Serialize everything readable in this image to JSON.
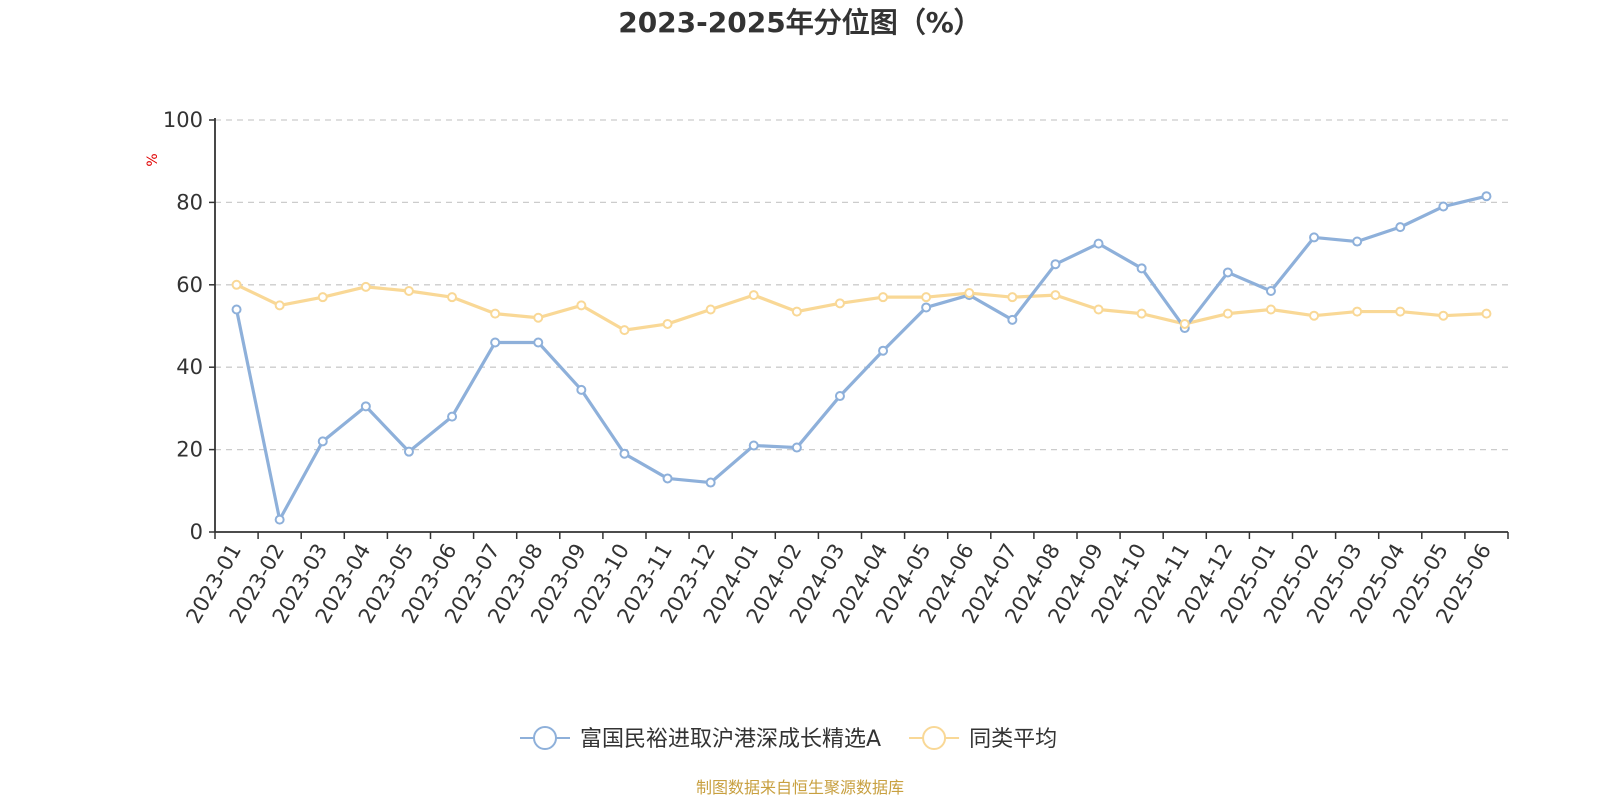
{
  "chart_data": {
    "type": "line",
    "title": "2023-2025年分位图（%）",
    "ylabel": "%",
    "ylim": [
      0,
      100
    ],
    "yticks": [
      "0",
      "20",
      "40",
      "60",
      "80",
      "100"
    ],
    "grid": true,
    "legend": "bottom-center",
    "categories": [
      "2023-01",
      "2023-02",
      "2023-03",
      "2023-04",
      "2023-05",
      "2023-06",
      "2023-07",
      "2023-08",
      "2023-09",
      "2023-10",
      "2023-11",
      "2023-12",
      "2024-01",
      "2024-02",
      "2024-03",
      "2024-04",
      "2024-05",
      "2024-06",
      "2024-07",
      "2024-08",
      "2024-09",
      "2024-10",
      "2024-11",
      "2024-12",
      "2025-01",
      "2025-02",
      "2025-03",
      "2025-04",
      "2025-05",
      "2025-06"
    ],
    "series": [
      {
        "name": "富国民裕进取沪港深成长精选A",
        "color": "#8eb0da",
        "values": [
          54,
          3,
          22,
          30.5,
          19.5,
          28,
          46,
          46,
          34.5,
          19,
          13,
          12,
          21,
          20.5,
          33,
          44,
          54.5,
          57.5,
          51.5,
          65,
          70,
          64,
          49.5,
          63,
          58.5,
          71.5,
          70.5,
          74,
          79,
          81.5
        ]
      },
      {
        "name": "同类平均",
        "color": "#f9d896",
        "values": [
          60,
          55,
          57,
          59.5,
          58.5,
          57,
          53,
          52,
          55,
          49,
          50.5,
          54,
          57.5,
          53.5,
          55.5,
          57,
          57,
          58,
          57,
          57.5,
          54,
          53,
          50.5,
          53,
          54,
          52.5,
          53.5,
          53.5,
          52.5,
          53
        ]
      }
    ]
  },
  "source_text": "制图数据来自恒生聚源数据库"
}
